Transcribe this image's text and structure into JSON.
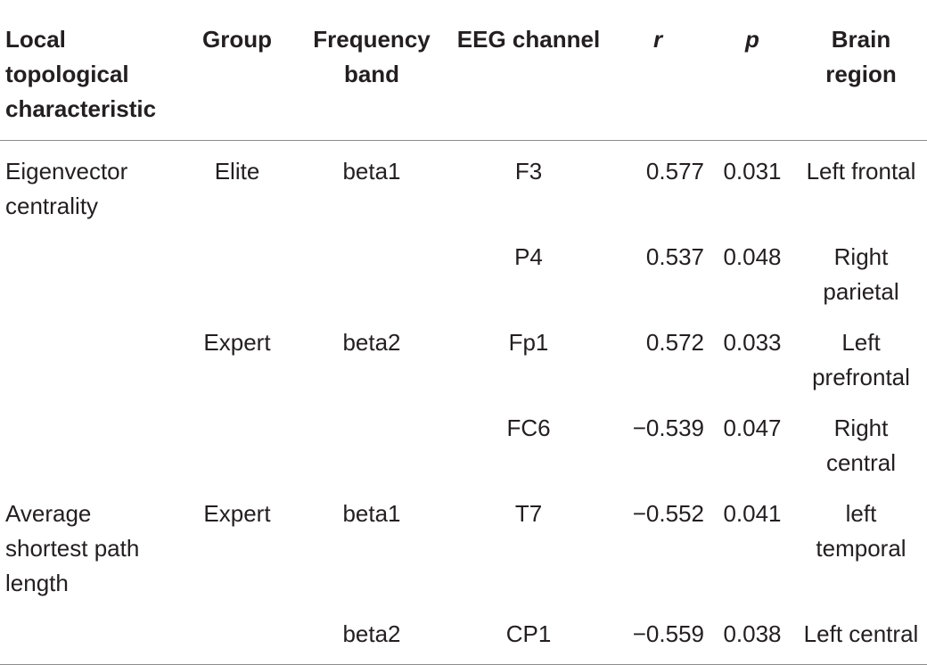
{
  "table": {
    "headers": {
      "local_topological_characteristic": "Local topological characteristic",
      "group": "Group",
      "frequency_band": "Frequency band",
      "eeg_channel": "EEG channel",
      "r": "r",
      "p": "p",
      "brain_region": "Brain region"
    },
    "rows": [
      {
        "characteristic": "Eigenvector centrality",
        "group": "Elite",
        "band": "beta1",
        "channel": "F3",
        "r": "0.577",
        "p": "0.031",
        "region": "Left frontal"
      },
      {
        "characteristic": "",
        "group": "",
        "band": "",
        "channel": "P4",
        "r": "0.537",
        "p": "0.048",
        "region": "Right parietal"
      },
      {
        "characteristic": "",
        "group": "Expert",
        "band": "beta2",
        "channel": "Fp1",
        "r": "0.572",
        "p": "0.033",
        "region": "Left prefrontal"
      },
      {
        "characteristic": "",
        "group": "",
        "band": "",
        "channel": "FC6",
        "r": "−0.539",
        "p": "0.047",
        "region": "Right central"
      },
      {
        "characteristic": "Average shortest path length",
        "group": "Expert",
        "band": "beta1",
        "channel": "T7",
        "r": "−0.552",
        "p": "0.041",
        "region": "left temporal"
      },
      {
        "characteristic": "",
        "group": "",
        "band": "beta2",
        "channel": "CP1",
        "r": "−0.559",
        "p": "0.038",
        "region": "Left central"
      }
    ]
  }
}
